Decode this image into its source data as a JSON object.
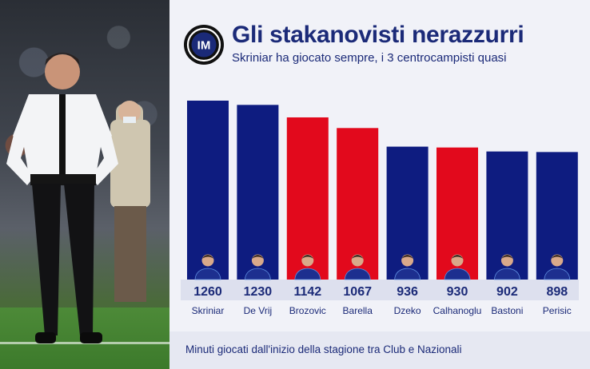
{
  "header": {
    "title": "Gli stakanovisti nerazzurri",
    "subtitle": "Skriniar ha giocato sempre, i 3 centrocampisti quasi",
    "logo_text": "IM"
  },
  "footnote": "Minuti giocati dall'inizio della stagione tra Club e Nazionali",
  "colors": {
    "defender_blue": "#0e1c80",
    "midfielder_red": "#e2091c",
    "text": "#1b2a78",
    "band": "#dde0ee"
  },
  "chart_data": {
    "type": "bar",
    "title": "Gli stakanovisti nerazzurri",
    "subtitle": "Skriniar ha giocato sempre, i 3 centrocampisti quasi",
    "categories": [
      "Skriniar",
      "De Vrij",
      "Brozovic",
      "Barella",
      "Dzeko",
      "Calhanoglu",
      "Bastoni",
      "Perisic"
    ],
    "values": [
      1260,
      1230,
      1142,
      1067,
      936,
      930,
      902,
      898
    ],
    "bar_colors": [
      "#0e1c80",
      "#0e1c80",
      "#e2091c",
      "#e2091c",
      "#0e1c80",
      "#e2091c",
      "#0e1c80",
      "#0e1c80"
    ],
    "ylim": [
      0,
      1260
    ],
    "grid": false,
    "legend": "none",
    "note": "Minuti giocati dall'inizio della stagione tra Club e Nazionali"
  }
}
